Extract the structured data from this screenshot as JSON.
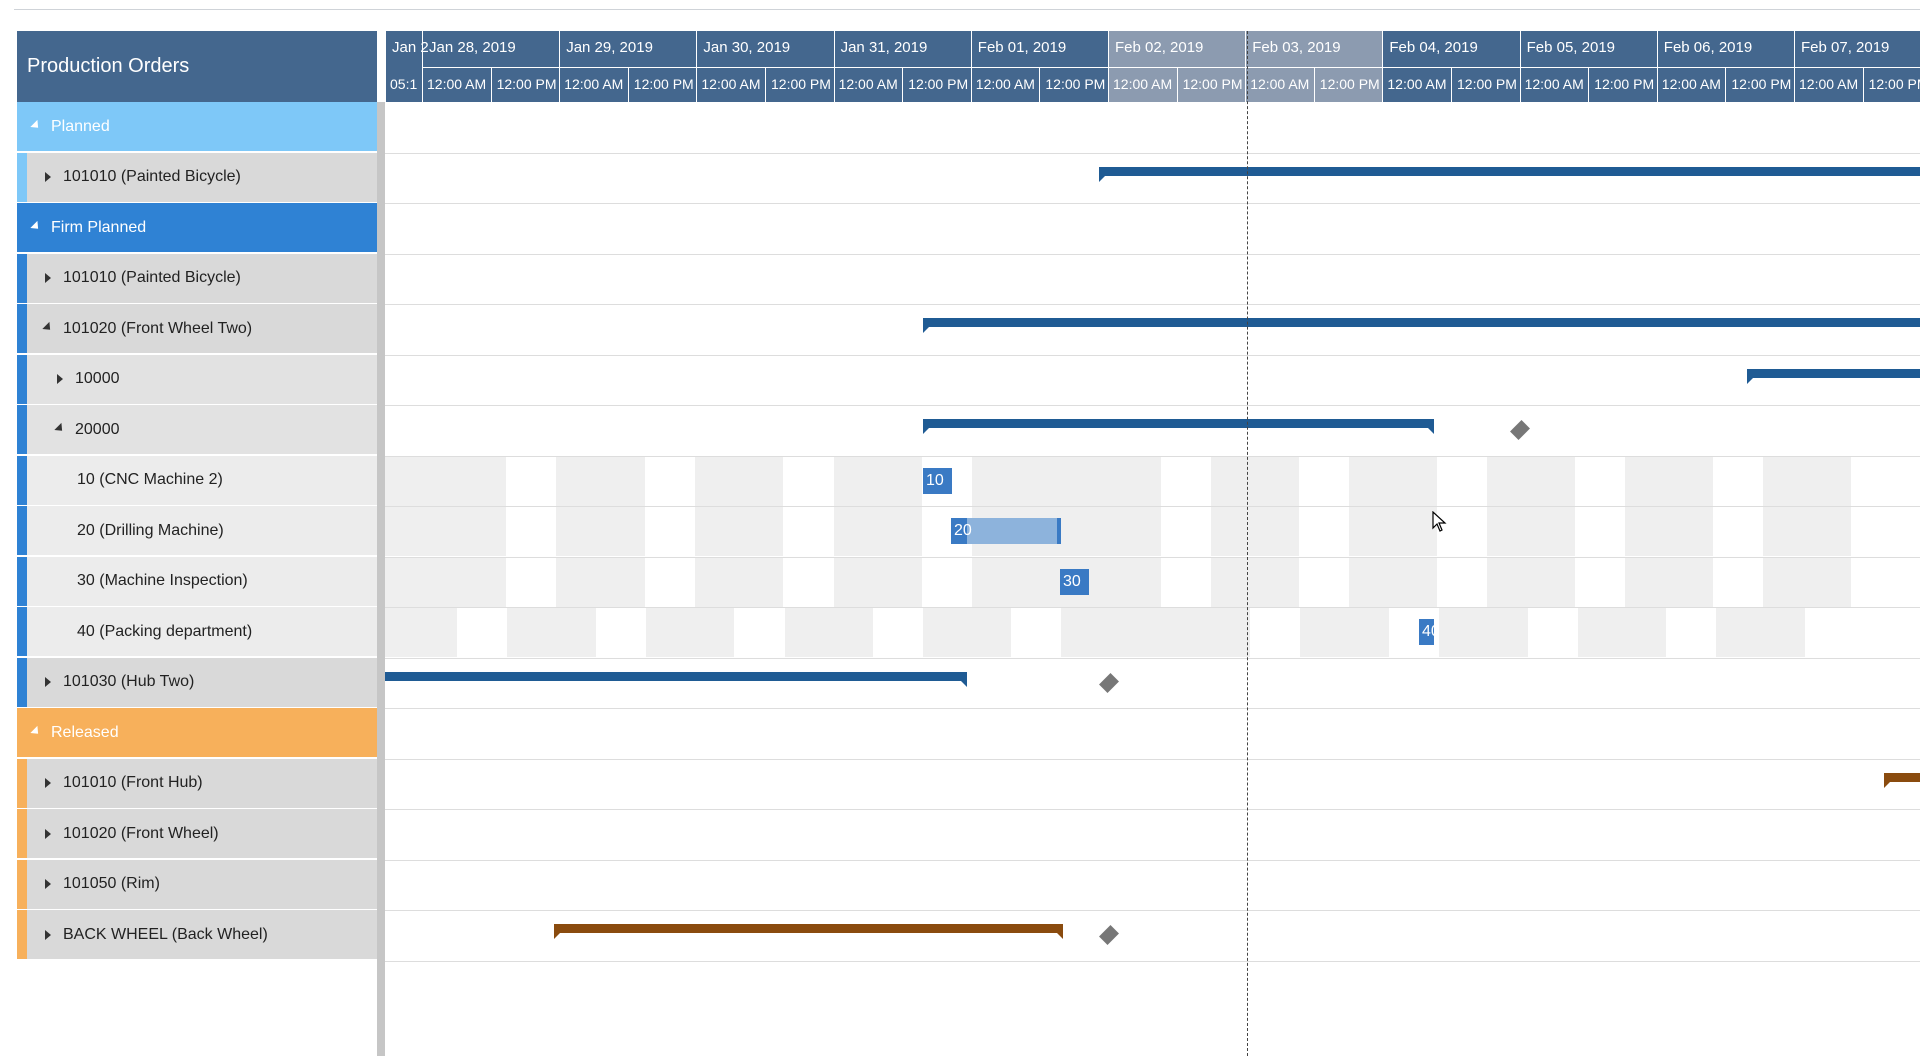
{
  "tree": {
    "header": "Production Orders",
    "rows": [
      {
        "label": "Planned",
        "type": "group",
        "expanded": true,
        "color": "#7ec8f8"
      },
      {
        "label": "101010 (Painted Bicycle)",
        "type": "order",
        "level": 1,
        "expanded": false
      },
      {
        "label": "Firm Planned",
        "type": "group",
        "expanded": true,
        "color": "#2f82d4"
      },
      {
        "label": "101010 (Painted Bicycle)",
        "type": "order",
        "level": 1,
        "expanded": false
      },
      {
        "label": "101020 (Front Wheel Two)",
        "type": "order",
        "level": 1,
        "expanded": true
      },
      {
        "label": "10000",
        "type": "order",
        "level": 2,
        "expanded": false
      },
      {
        "label": "20000",
        "type": "order",
        "level": 2,
        "expanded": true
      },
      {
        "label": "10 (CNC Machine 2)",
        "type": "op",
        "level": 3
      },
      {
        "label": "20 (Drilling Machine)",
        "type": "op",
        "level": 3
      },
      {
        "label": "30 (Machine Inspection)",
        "type": "op",
        "level": 3
      },
      {
        "label": "40 (Packing department)",
        "type": "op",
        "level": 3
      },
      {
        "label": "101030 (Hub Two)",
        "type": "order",
        "level": 1,
        "expanded": false
      },
      {
        "label": "Released",
        "type": "group",
        "expanded": true,
        "color": "#f7b05b"
      },
      {
        "label": "101010 (Front Hub)",
        "type": "order",
        "level": 1,
        "expanded": false
      },
      {
        "label": "101020 (Front Wheel)",
        "type": "order",
        "level": 1,
        "expanded": false
      },
      {
        "label": "101050 (Rim)",
        "type": "order",
        "level": 1,
        "expanded": false
      },
      {
        "label": "BACK WHEEL (Back Wheel)",
        "type": "order",
        "level": 1,
        "expanded": false
      }
    ]
  },
  "timeline": {
    "first_partial_day": "Jan 2",
    "first_partial_tick": "05:1",
    "days": [
      "Jan 28, 2019",
      "Jan 29, 2019",
      "Jan 30, 2019",
      "Jan 31, 2019",
      "Feb 01, 2019",
      "Feb 02, 2019",
      "Feb 03, 2019",
      "Feb 04, 2019",
      "Feb 05, 2019",
      "Feb 06, 2019",
      "Feb 07, 2019"
    ],
    "highlighted_days": [
      "Feb 02, 2019",
      "Feb 03, 2019"
    ],
    "tick_labels": [
      "12:00 AM",
      "12:00 PM"
    ]
  },
  "operations": {
    "op10": "10",
    "op20": "20",
    "op30": "30",
    "op40": "40"
  },
  "colors": {
    "blue_bar": "#1f5b94",
    "brown_bar": "#8a4b0e",
    "op_block": "#3a7ac4",
    "op_light": "#8db3dc",
    "diamond": "#777777"
  }
}
